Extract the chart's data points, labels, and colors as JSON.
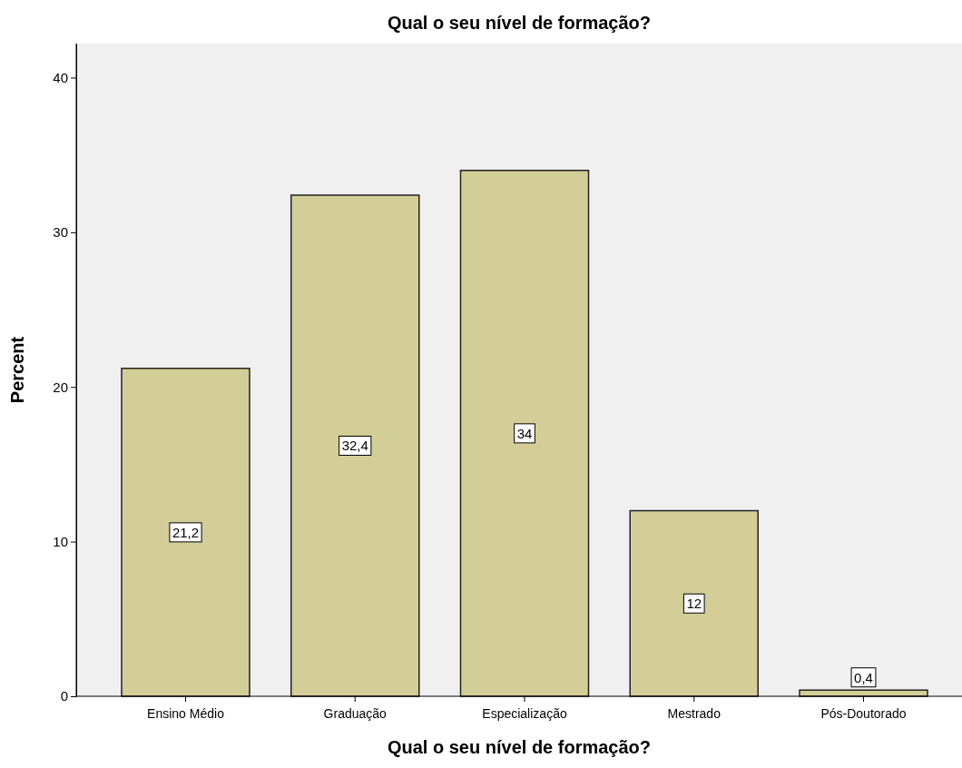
{
  "chart_data": {
    "type": "bar",
    "title": "Qual o seu nível de formação?",
    "xlabel": "Qual o seu nível de formação?",
    "ylabel": "Percent",
    "categories": [
      "Ensino Médio",
      "Graduação",
      "Especialização",
      "Mestrado",
      "Pós-Doutorado"
    ],
    "values": [
      21.2,
      32.4,
      34,
      12,
      0.4
    ],
    "value_labels": [
      "21,2",
      "32,4",
      "34",
      "12",
      "0,4"
    ],
    "color": "#d3ce97",
    "ylim": [
      0,
      42.2
    ],
    "yticks": [
      0,
      10,
      20,
      30,
      40
    ],
    "grid": false
  }
}
